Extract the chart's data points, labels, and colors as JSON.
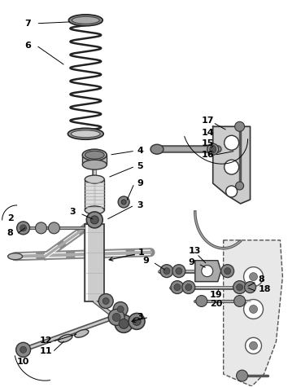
{
  "bg_color": "#ffffff",
  "fig_w": 3.7,
  "fig_h": 4.75,
  "dpi": 100
}
